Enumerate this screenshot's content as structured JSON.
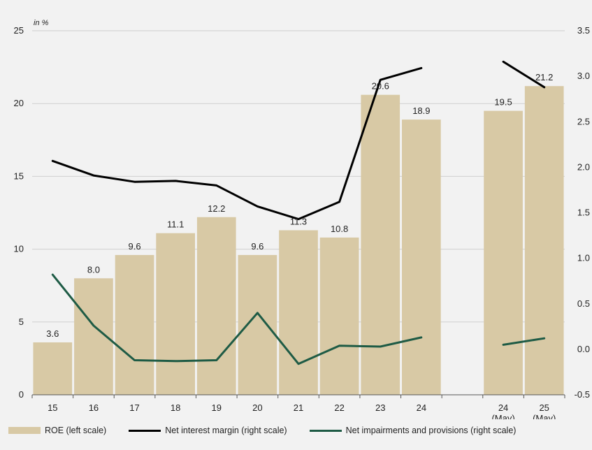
{
  "chart_data": {
    "type": "bar",
    "unit_label": "in %",
    "categories": [
      "15",
      "16",
      "17",
      "18",
      "19",
      "20",
      "21",
      "22",
      "23",
      "24",
      "",
      "24\n(May)",
      "25\n(May)"
    ],
    "series": [
      {
        "name": "ROE (left scale)",
        "type": "bar",
        "axis": "left",
        "values": [
          3.6,
          8.0,
          9.6,
          11.1,
          12.2,
          9.6,
          11.3,
          10.8,
          20.6,
          18.9,
          null,
          19.5,
          21.2
        ],
        "labels": [
          "3.6",
          "8.0",
          "9.6",
          "11.1",
          "12.2",
          "9.6",
          "11.3",
          "10.8",
          "20.6",
          "18.9",
          "",
          "19.5",
          "21.2"
        ]
      },
      {
        "name": "Net interest margin (right scale)",
        "type": "line",
        "axis": "right",
        "values": [
          2.07,
          1.91,
          1.84,
          1.85,
          1.8,
          1.57,
          1.43,
          1.62,
          2.96,
          3.09,
          null,
          3.16,
          2.88
        ]
      },
      {
        "name": "Net impairments and provisions (right scale)",
        "type": "line",
        "axis": "right",
        "values": [
          0.82,
          0.26,
          -0.12,
          -0.13,
          -0.12,
          0.4,
          -0.16,
          0.04,
          0.03,
          0.13,
          null,
          0.05,
          0.12
        ]
      }
    ],
    "left_axis": {
      "min": 0,
      "max": 25,
      "ticks": [
        "0",
        "5",
        "10",
        "15",
        "20",
        "25"
      ]
    },
    "right_axis": {
      "min": -0.5,
      "max": 3.5,
      "ticks": [
        "-0.5",
        "0.0",
        "0.5",
        "1.0",
        "1.5",
        "2.0",
        "2.5",
        "3.0",
        "3.5"
      ]
    },
    "grid": true,
    "legend_position": "bottom",
    "colors": {
      "bar": "#d8c9a5",
      "nim": "#000000",
      "impairments": "#1e5b45",
      "grid": "#cfcfcf",
      "background": "#f2f2f2"
    }
  },
  "legend": {
    "roe": "ROE (left scale)",
    "nim": "Net interest margin (right scale)",
    "impairments": "Net impairments and provisions (right scale)"
  }
}
